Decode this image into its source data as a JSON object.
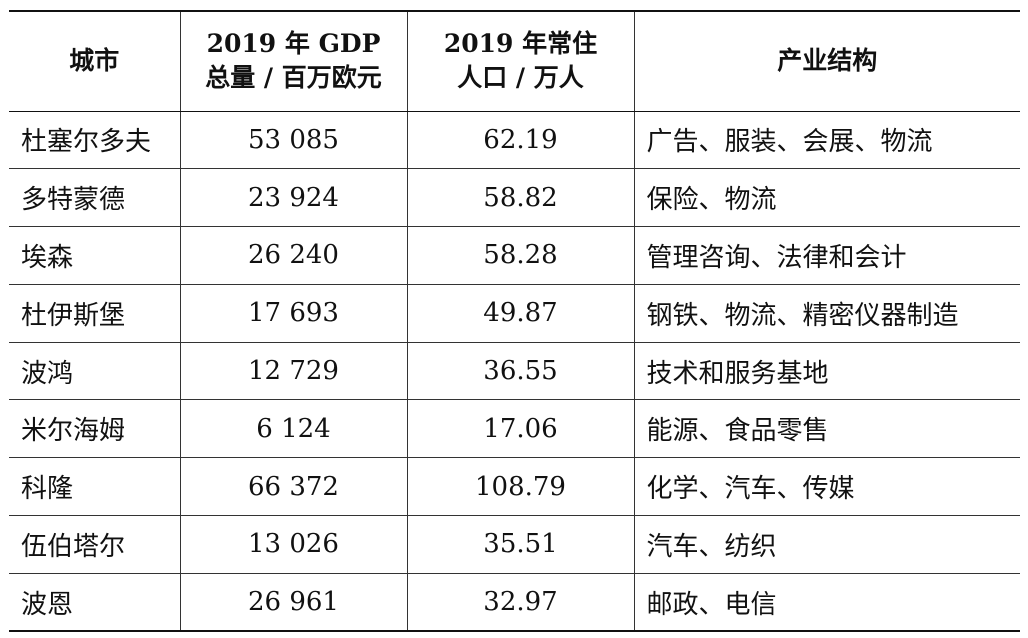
{
  "header": {
    "city": "城市",
    "gdp_line1": "2019 年 GDP",
    "gdp_line2": "总量 / 百万欧元",
    "pop_line1": "2019 年常住",
    "pop_line2": "人口 / 万人",
    "industry": "产业结构"
  },
  "rows": [
    {
      "city": "杜塞尔多夫",
      "gdp": "53 085",
      "population": "62.19",
      "industry": "广告、服装、会展、物流"
    },
    {
      "city": "多特蒙德",
      "gdp": "23 924",
      "population": "58.82",
      "industry": "保险、物流"
    },
    {
      "city": "埃森",
      "gdp": "26 240",
      "population": "58.28",
      "industry": "管理咨询、法律和会计"
    },
    {
      "city": "杜伊斯堡",
      "gdp": "17 693",
      "population": "49.87",
      "industry": "钢铁、物流、精密仪器制造"
    },
    {
      "city": "波鸿",
      "gdp": "12 729",
      "population": "36.55",
      "industry": "技术和服务基地"
    },
    {
      "city": "米尔海姆",
      "gdp": "6 124",
      "population": "17.06",
      "industry": "能源、食品零售"
    },
    {
      "city": "科隆",
      "gdp": "66 372",
      "population": "108.79",
      "industry": "化学、汽车、传媒"
    },
    {
      "city": "伍伯塔尔",
      "gdp": "13 026",
      "population": "35.51",
      "industry": "汽车、纺织"
    },
    {
      "city": "波恩",
      "gdp": "26 961",
      "population": "32.97",
      "industry": "邮政、电信"
    }
  ]
}
